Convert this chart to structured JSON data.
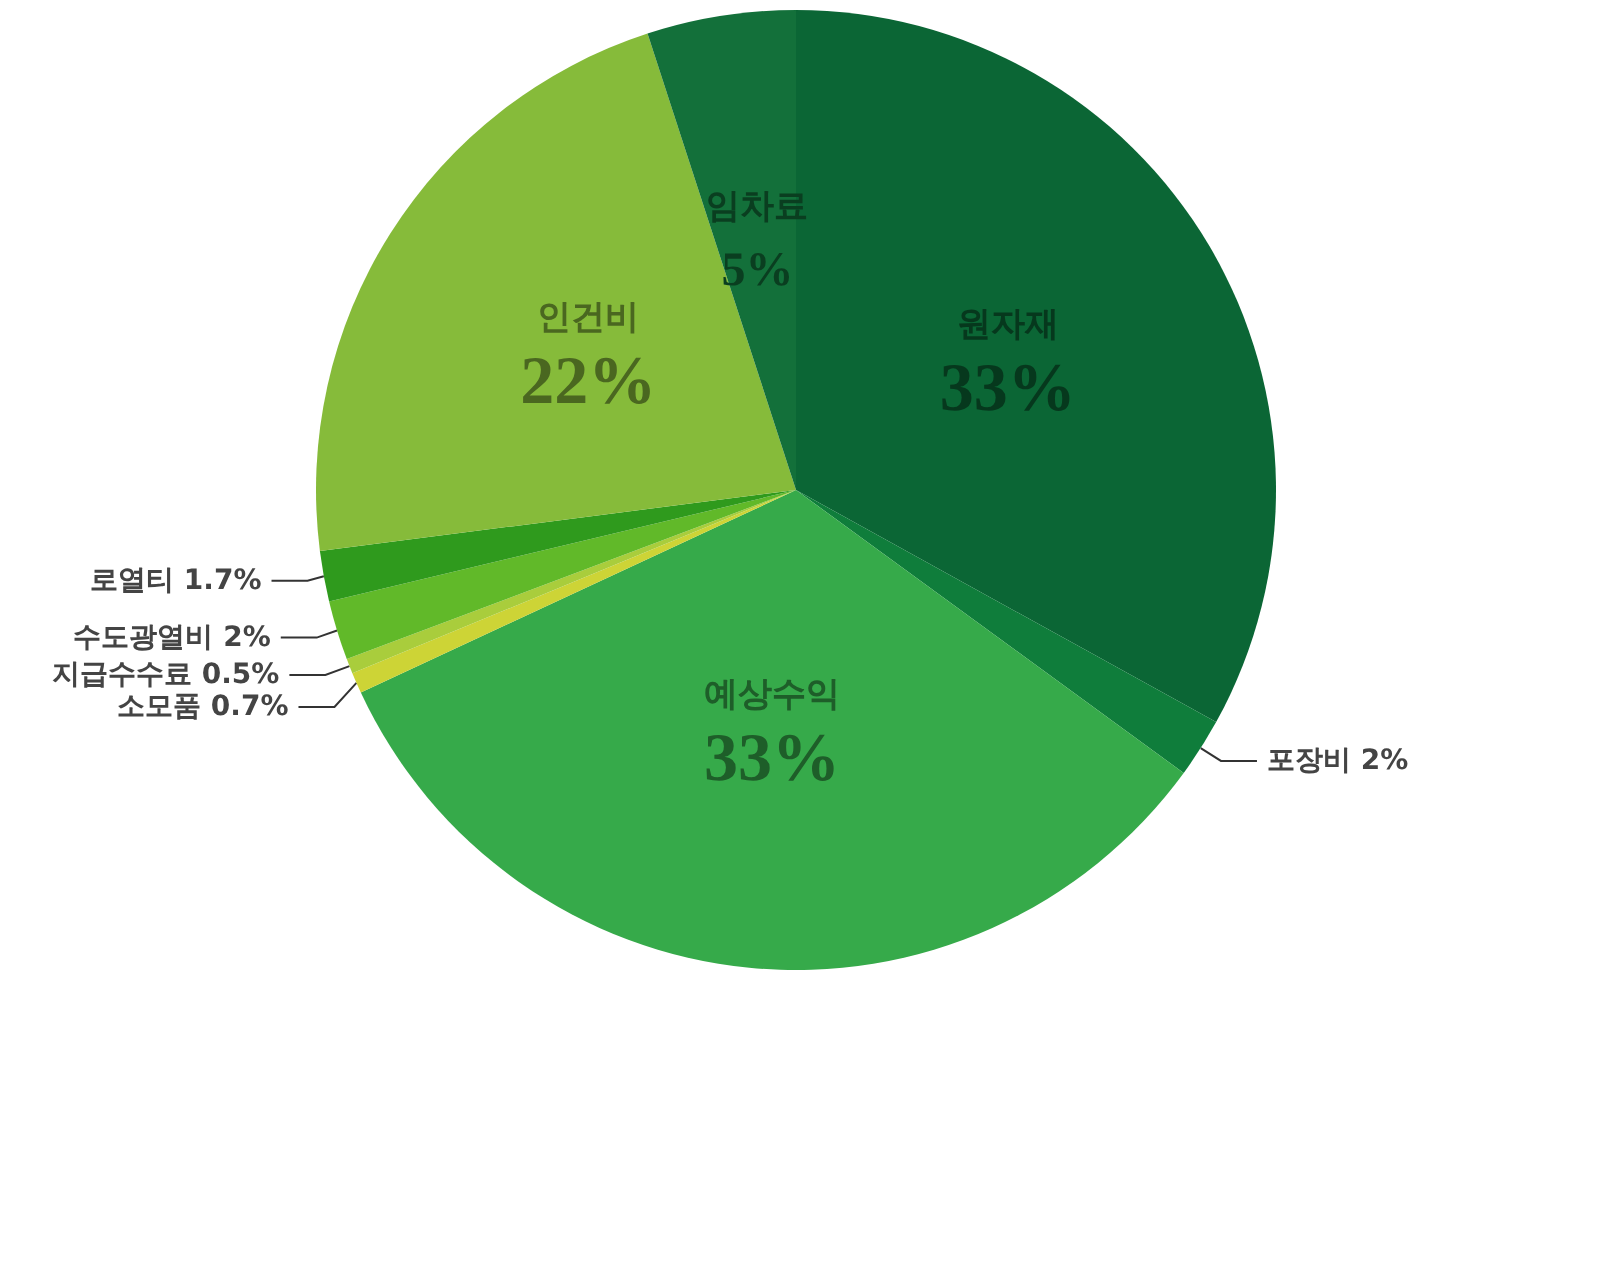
{
  "chart_data": {
    "type": "pie",
    "categories": [
      "원자재",
      "포장비",
      "예상수익",
      "소모품",
      "지급수수료",
      "수도광열비",
      "로열티",
      "인건비",
      "임차료"
    ],
    "values": [
      33,
      2,
      33,
      0.7,
      0.5,
      2,
      1.7,
      22,
      5
    ],
    "value_labels": [
      "33%",
      "2%",
      "33%",
      "0.7%",
      "0.5%",
      "2%",
      "1.7%",
      "22%",
      "5%"
    ],
    "colors": [
      "#0b6635",
      "#0f7d3b",
      "#36aa4a",
      "#cdd436",
      "#a9cd3c",
      "#61b929",
      "#2f9a1d",
      "#86bb3a",
      "#13703a"
    ],
    "legend": false
  }
}
